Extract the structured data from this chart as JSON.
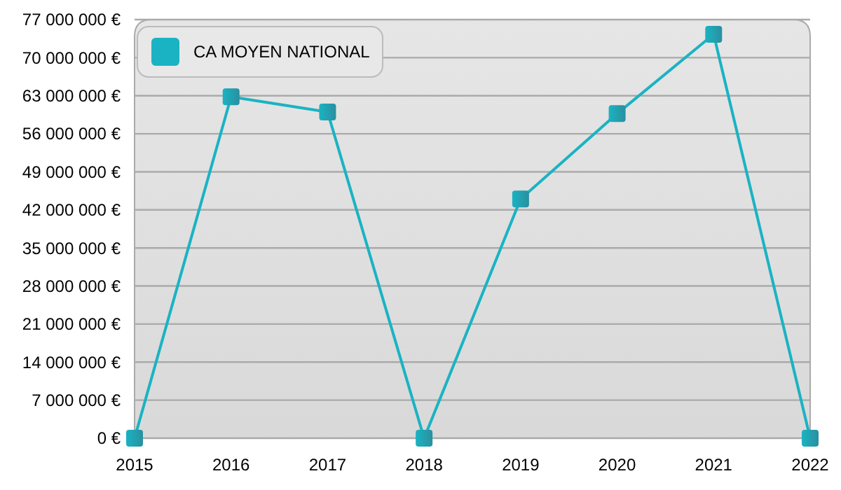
{
  "chart_data": {
    "type": "line",
    "categories": [
      "2015",
      "2016",
      "2017",
      "2018",
      "2019",
      "2020",
      "2021",
      "2022"
    ],
    "series": [
      {
        "name": "CA MOYEN NATIONAL",
        "color": "#1ab3c3",
        "values": [
          0,
          62800000,
          60000000,
          0,
          44000000,
          59700000,
          74300000,
          0
        ]
      }
    ],
    "ylim": [
      0,
      77000000
    ],
    "yticks": [
      {
        "value": 0,
        "label": "0 €"
      },
      {
        "value": 7000000,
        "label": "7 000 000 €"
      },
      {
        "value": 14000000,
        "label": "14 000 000 €"
      },
      {
        "value": 21000000,
        "label": "21 000 000 €"
      },
      {
        "value": 28000000,
        "label": "28 000 000 €"
      },
      {
        "value": 35000000,
        "label": "35 000 000 €"
      },
      {
        "value": 42000000,
        "label": "42 000 000 €"
      },
      {
        "value": 49000000,
        "label": "49 000 000 €"
      },
      {
        "value": 56000000,
        "label": "56 000 000 €"
      },
      {
        "value": 63000000,
        "label": "63 000 000 €"
      },
      {
        "value": 70000000,
        "label": "70 000 000 €"
      },
      {
        "value": 77000000,
        "label": "77 000 000 €"
      }
    ],
    "grid": "y",
    "legend": "top left",
    "marker": "square",
    "line_style": "solid"
  }
}
